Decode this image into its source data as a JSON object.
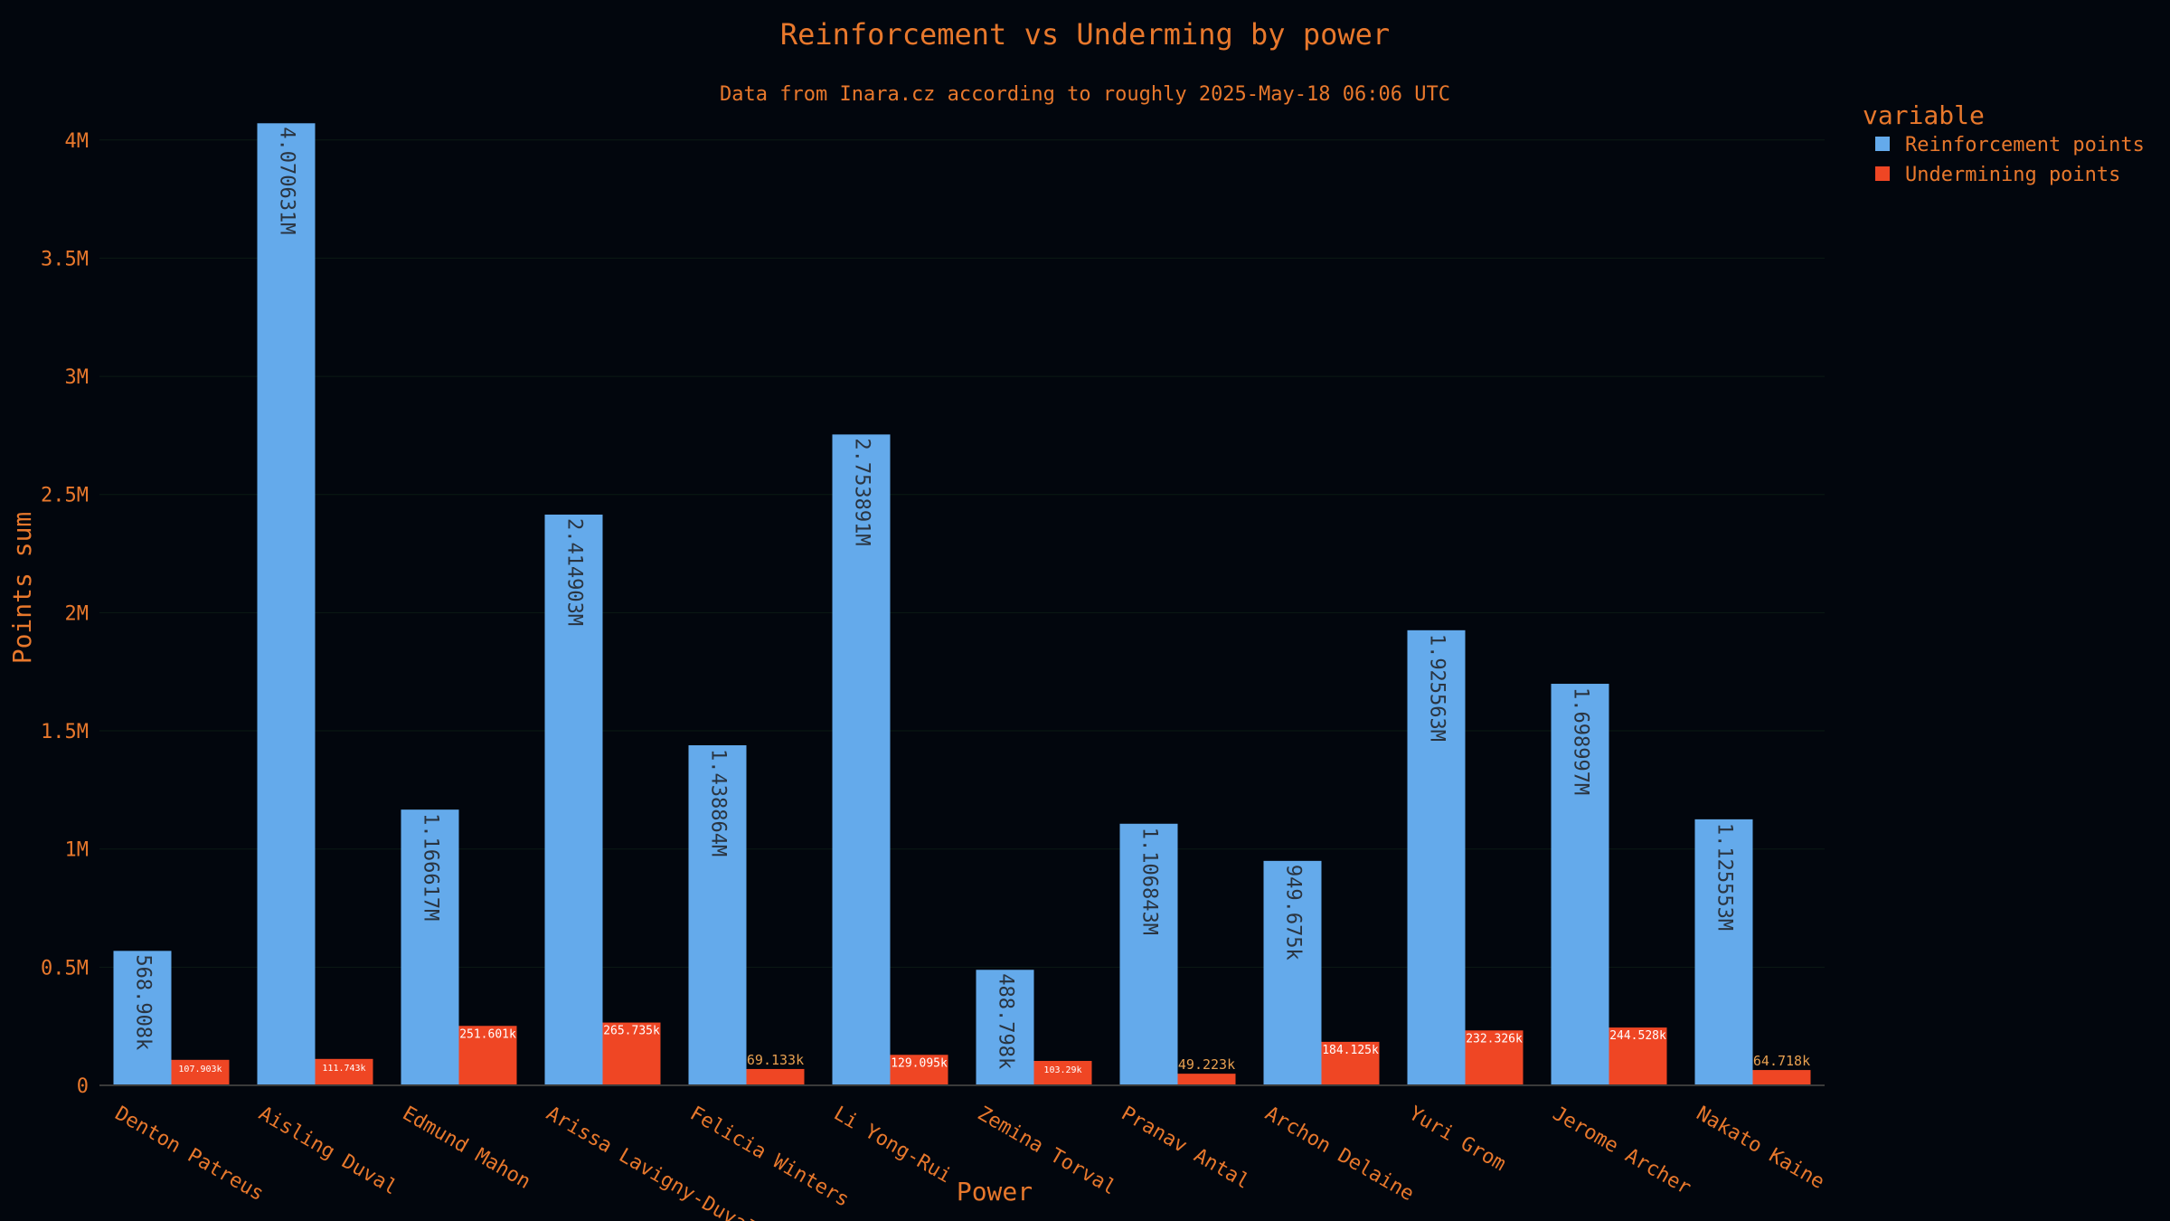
{
  "chart_data": {
    "type": "bar",
    "title": "Reinforcement vs Underming by power",
    "subtitle": "Data from Inara.cz according to roughly 2025-May-18 06:06 UTC",
    "xlabel": "Power",
    "ylabel": "Points sum",
    "ylim": [
      0,
      4100000
    ],
    "yticks": [
      0,
      500000,
      1000000,
      1500000,
      2000000,
      2500000,
      3000000,
      3500000,
      4000000
    ],
    "ytick_labels": [
      "0",
      "0.5M",
      "1M",
      "1.5M",
      "2M",
      "2.5M",
      "3M",
      "3.5M",
      "4M"
    ],
    "grid": true,
    "legend_title": "variable",
    "legend_position": "top-right",
    "categories": [
      "Denton Patreus",
      "Aisling Duval",
      "Edmund Mahon",
      "Arissa Lavigny-Duval",
      "Felicia Winters",
      "Li Yong-Rui",
      "Zemina Torval",
      "Pranav Antal",
      "Archon Delaine",
      "Yuri Grom",
      "Jerome Archer",
      "Nakato Kaine"
    ],
    "series": [
      {
        "name": "Reinforcement points",
        "color": "#64aaeb",
        "values": [
          568908,
          4070631,
          1166617,
          2414903,
          1438864,
          2753891,
          488798,
          1106843,
          949675,
          1925563,
          1698997,
          1125553
        ],
        "labels": [
          "568.908k",
          "4.070631M",
          "1.166617M",
          "2.414903M",
          "1.438864M",
          "2.753891M",
          "488.798k",
          "1.106843M",
          "949.675k",
          "1.925563M",
          "1.698997M",
          "1.125553M"
        ]
      },
      {
        "name": "Undermining points",
        "color": "#ef4624",
        "values": [
          107903,
          111743,
          251601,
          265735,
          69133,
          129095,
          103290,
          49223,
          184125,
          232326,
          244528,
          64718
        ],
        "labels": [
          "107.903k",
          "111.743k",
          "251.601k",
          "265.735k",
          "69.133k",
          "129.095k",
          "103.29k",
          "49.223k",
          "184.125k",
          "232.326k",
          "244.528k",
          "64.718k"
        ]
      }
    ]
  }
}
